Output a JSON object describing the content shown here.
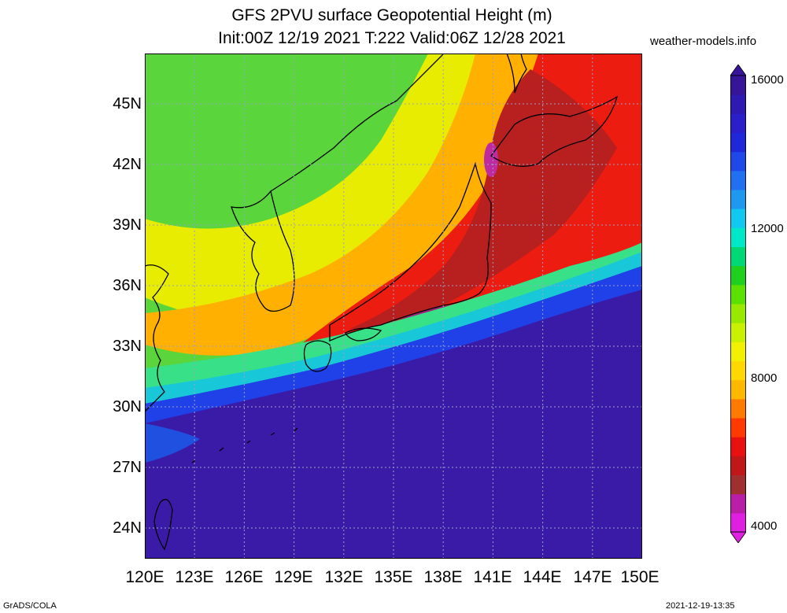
{
  "header": {
    "title_line1": "GFS 2PVU surface Geopotential Height (m)",
    "title_line2": "Init:00Z 12/19 2021 T:222 Valid:06Z 12/28 2021",
    "site": "weather-models.info"
  },
  "map": {
    "projection": "lat-lon",
    "lon_range": [
      120,
      150
    ],
    "lat_range": [
      22.5,
      47.5
    ],
    "lat_labels": [
      "45N",
      "42N",
      "39N",
      "36N",
      "33N",
      "30N",
      "27N",
      "24N"
    ],
    "lon_labels": [
      "120E",
      "123E",
      "126E",
      "129E",
      "132E",
      "135E",
      "138E",
      "141E",
      "144E",
      "147E",
      "150E"
    ],
    "gridlines": "dotted",
    "field": "2PVU surface geopotential height",
    "units": "m"
  },
  "colorbar": {
    "labels": [
      "16000",
      "12000",
      "8000",
      "4000"
    ],
    "min": 4000,
    "max": 16000,
    "colors": [
      "#e020e0",
      "#b81fa6",
      "#a03030",
      "#c01818",
      "#e81010",
      "#ff3a00",
      "#ff7a00",
      "#ffb800",
      "#ffd800",
      "#f0f000",
      "#c8f000",
      "#98e800",
      "#5ce000",
      "#20d020",
      "#00d878",
      "#00e8c8",
      "#10c8f0",
      "#1f98f0",
      "#2070f0",
      "#1f48e8",
      "#1f28d8",
      "#2a1fc8",
      "#2e1ab0",
      "#361598"
    ]
  },
  "footer": {
    "left": "GrADS/COLA",
    "right": "2021-12-19-13:35"
  }
}
